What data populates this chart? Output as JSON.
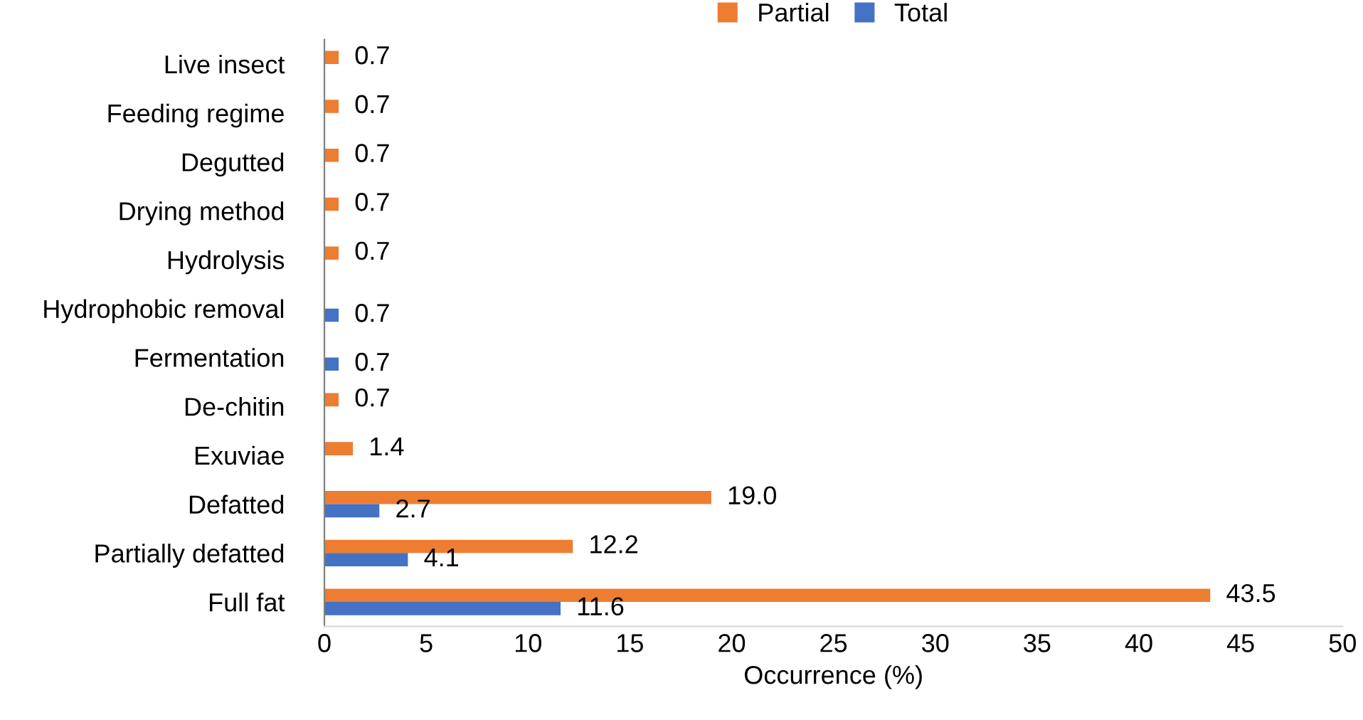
{
  "chart_data": {
    "type": "bar",
    "orientation": "horizontal",
    "xlabel": "Occurrence (%)",
    "categories": [
      "Live insect",
      "Feeding regime",
      "Degutted",
      "Drying method",
      "Hydrolysis",
      "Hydrophobic removal",
      "Fermentation",
      "De-chitin",
      "Exuviae",
      "Defatted",
      "Partially defatted",
      "Full fat"
    ],
    "series": [
      {
        "name": "Partial",
        "color": "#ed7d31",
        "values": [
          0.7,
          0.7,
          0.7,
          0.7,
          0.7,
          null,
          null,
          0.7,
          1.4,
          19.0,
          12.2,
          43.5
        ],
        "value_labels": [
          "0.7",
          "0.7",
          "0.7",
          "0.7",
          "0.7",
          null,
          null,
          "0.7",
          "1.4",
          "19.0",
          "12.2",
          "43.5"
        ]
      },
      {
        "name": "Total",
        "color": "#4472c4",
        "values": [
          null,
          null,
          null,
          null,
          null,
          0.7,
          0.7,
          null,
          null,
          2.7,
          4.1,
          11.6
        ],
        "value_labels": [
          null,
          null,
          null,
          null,
          null,
          "0.7",
          "0.7",
          null,
          null,
          "2.7",
          "4.1",
          "11.6"
        ]
      }
    ],
    "xlim": [
      0,
      50
    ],
    "xticks": [
      0,
      5,
      10,
      15,
      20,
      25,
      30,
      35,
      40,
      45,
      50
    ],
    "grid": false,
    "legend": "top"
  }
}
